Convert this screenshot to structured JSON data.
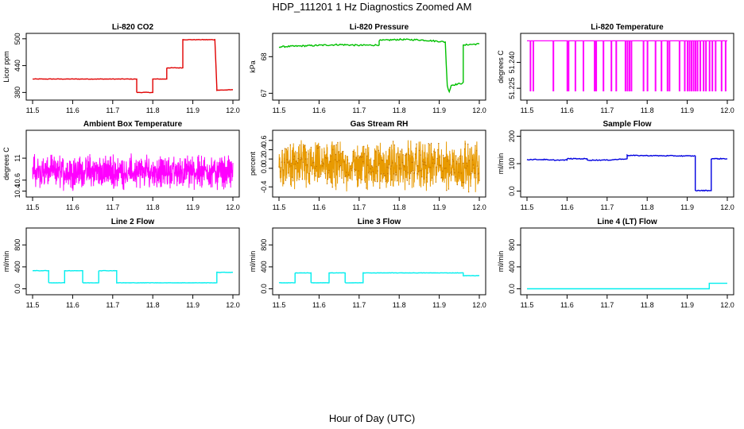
{
  "page": {
    "title": "HDP_111201  1 Hz Diagnostics Zoomed AM",
    "x_caption": "Hour of Day (UTC)"
  },
  "chart_data": [
    {
      "type": "line",
      "title": "Li-820 CO2",
      "ylabel": "Licor ppm",
      "color": "#e00000",
      "xlim": [
        11.5,
        12.0
      ],
      "ylim": [
        370,
        505
      ],
      "yticks": [
        380,
        440,
        500
      ],
      "xticks": [
        11.5,
        11.6,
        11.7,
        11.8,
        11.9,
        12.0
      ],
      "noise": 0.6,
      "series": [
        {
          "x": [
            11.5,
            11.76,
            11.76,
            11.8,
            11.8,
            11.835,
            11.835,
            11.875,
            11.875,
            11.955,
            11.96,
            11.96,
            12.0
          ],
          "y": [
            410,
            410,
            380,
            380,
            410,
            410,
            435,
            435,
            498,
            498,
            390,
            385,
            386
          ]
        }
      ]
    },
    {
      "type": "line",
      "title": "Li-820 Pressure",
      "ylabel": "kPa",
      "color": "#00c000",
      "xlim": [
        11.5,
        12.0
      ],
      "ylim": [
        66.9,
        68.55
      ],
      "yticks": [
        67.0,
        68.0
      ],
      "xticks": [
        11.5,
        11.6,
        11.7,
        11.8,
        11.9,
        12.0
      ],
      "noise": 0.02,
      "series": [
        {
          "x": [
            11.5,
            11.55,
            11.6,
            11.65,
            11.7,
            11.75,
            11.75,
            11.8,
            11.85,
            11.9,
            11.915,
            11.92,
            11.925,
            11.93,
            11.955,
            11.96,
            11.96,
            11.97,
            12.0
          ],
          "y": [
            68.27,
            68.29,
            68.31,
            68.33,
            68.31,
            68.32,
            68.44,
            68.47,
            68.46,
            68.42,
            68.4,
            67.2,
            67.05,
            67.22,
            67.27,
            67.3,
            68.3,
            68.33,
            68.35
          ]
        }
      ]
    },
    {
      "type": "line",
      "title": "Li-820 Temperature",
      "ylabel": "degrees C",
      "color": "#ff00ff",
      "xlim": [
        11.5,
        12.0
      ],
      "ylim": [
        51.22,
        51.255
      ],
      "yticks": [
        51.225,
        51.24
      ],
      "ytick_labels": [
        "51.225",
        "51.240"
      ],
      "xticks": [
        11.5,
        11.6,
        11.7,
        11.8,
        11.9,
        12.0
      ],
      "baseline": 51.2525,
      "spike_to": 51.2235,
      "spikes": [
        11.508,
        11.515,
        11.565,
        11.6,
        11.603,
        11.62,
        11.64,
        11.668,
        11.672,
        11.69,
        11.71,
        11.722,
        11.745,
        11.75,
        11.755,
        11.76,
        11.79,
        11.8,
        11.82,
        11.835,
        11.85,
        11.855,
        11.88,
        11.893,
        11.9,
        11.905,
        11.91,
        11.915,
        11.92,
        11.925,
        11.932,
        11.94,
        11.946,
        11.955,
        11.962,
        11.97,
        11.985,
        11.995
      ]
    },
    {
      "type": "line",
      "title": "Ambient Box Temperature",
      "ylabel": "degrees C",
      "color": "#ff00ff",
      "xlim": [
        11.5,
        12.0
      ],
      "ylim": [
        10.35,
        11.45
      ],
      "yticks": [
        10.4,
        10.6,
        11.0
      ],
      "xticks": [
        11.5,
        11.6,
        11.7,
        11.8,
        11.9,
        12.0
      ],
      "noise_center": 10.75,
      "noise_amp": 0.35
    },
    {
      "type": "line",
      "title": "Gas Stream RH",
      "ylabel": "percent",
      "color": "#e89a00",
      "marker_color": "#c07000",
      "xlim": [
        11.5,
        12.0
      ],
      "ylim": [
        -0.55,
        0.75
      ],
      "yticks": [
        -0.4,
        0.0,
        0.2,
        0.4,
        0.6
      ],
      "xticks": [
        11.5,
        11.6,
        11.7,
        11.8,
        11.9,
        12.0
      ],
      "noise_center": 0.05,
      "noise_amp": 0.6
    },
    {
      "type": "line",
      "title": "Sample Flow",
      "ylabel": "ml/min",
      "color": "#0000e0",
      "xlim": [
        11.5,
        12.0
      ],
      "ylim": [
        -10,
        210
      ],
      "yticks": [
        0,
        100,
        200
      ],
      "xticks": [
        11.5,
        11.6,
        11.7,
        11.8,
        11.9,
        12.0
      ],
      "noise": 1.5,
      "series": [
        {
          "x": [
            11.5,
            11.55,
            11.55,
            11.6,
            11.6,
            11.65,
            11.65,
            11.7,
            11.75,
            11.75,
            11.9,
            11.92,
            11.92,
            11.96,
            11.96,
            12.0
          ],
          "y": [
            115,
            115,
            113,
            113,
            118,
            118,
            113,
            113,
            118,
            130,
            128,
            128,
            2,
            2,
            118,
            118
          ]
        }
      ]
    },
    {
      "type": "line",
      "title": "Line 2 Flow",
      "ylabel": "ml/min",
      "color": "#00eeee",
      "xlim": [
        11.5,
        12.0
      ],
      "ylim": [
        -50,
        1050
      ],
      "yticks": [
        0,
        400,
        800
      ],
      "xticks": [
        11.5,
        11.6,
        11.7,
        11.8,
        11.9,
        12.0
      ],
      "noise": 3,
      "series": [
        {
          "x": [
            11.5,
            11.54,
            11.54,
            11.58,
            11.58,
            11.625,
            11.625,
            11.665,
            11.665,
            11.71,
            11.71,
            11.96,
            11.96,
            12.0
          ],
          "y": [
            330,
            330,
            110,
            110,
            330,
            330,
            110,
            110,
            330,
            330,
            110,
            110,
            300,
            300
          ]
        }
      ]
    },
    {
      "type": "line",
      "title": "Line 3 Flow",
      "ylabel": "ml/min",
      "color": "#00eeee",
      "xlim": [
        11.5,
        12.0
      ],
      "ylim": [
        -50,
        1050
      ],
      "yticks": [
        0,
        400,
        800
      ],
      "xticks": [
        11.5,
        11.6,
        11.7,
        11.8,
        11.9,
        12.0
      ],
      "noise": 3,
      "series": [
        {
          "x": [
            11.5,
            11.54,
            11.54,
            11.58,
            11.58,
            11.625,
            11.625,
            11.665,
            11.665,
            11.71,
            11.71,
            11.96,
            11.96,
            12.0
          ],
          "y": [
            110,
            110,
            290,
            290,
            110,
            110,
            290,
            290,
            110,
            110,
            290,
            290,
            240,
            240
          ]
        }
      ]
    },
    {
      "type": "line",
      "title": "Line 4 (LT) Flow",
      "ylabel": "ml/min",
      "color": "#00eeee",
      "xlim": [
        11.5,
        12.0
      ],
      "ylim": [
        -50,
        1050
      ],
      "yticks": [
        0,
        400,
        800
      ],
      "xticks": [
        11.5,
        11.6,
        11.7,
        11.8,
        11.9,
        12.0
      ],
      "noise": 0,
      "series": [
        {
          "x": [
            11.5,
            11.955,
            11.955,
            12.0
          ],
          "y": [
            0,
            0,
            100,
            100
          ]
        }
      ]
    }
  ]
}
